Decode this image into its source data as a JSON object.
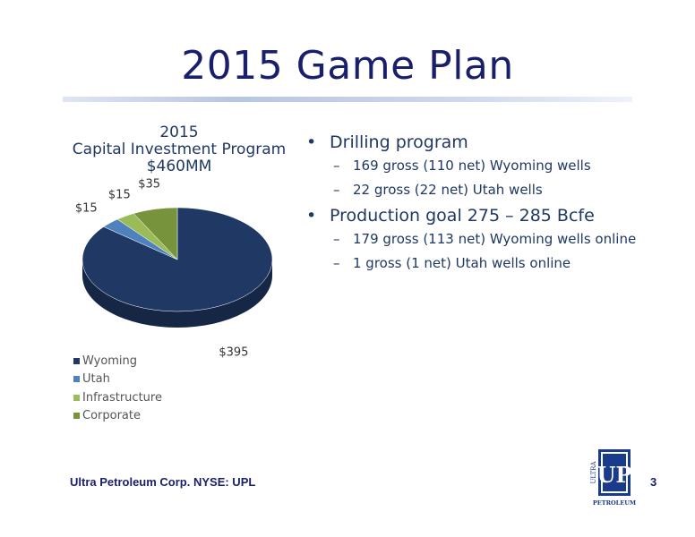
{
  "slide": {
    "title": "2015 Game Plan",
    "footer": "Ultra Petroleum Corp. NYSE: UPL",
    "page_number": "3"
  },
  "bullets": [
    {
      "label": "Drilling program",
      "subitems": [
        "169 gross (110 net) Wyoming wells",
        "22 gross (22 net) Utah wells"
      ]
    },
    {
      "label": "Production goal 275 – 285 Bcfe",
      "subitems": [
        "179 gross (113 net) Wyoming wells online",
        "1 gross (1 net) Utah wells online"
      ]
    }
  ],
  "logo": {
    "text_up": "UP",
    "text_ultra": "ULTRA",
    "text_petroleum": "PETROLEUM"
  },
  "chart_data": {
    "type": "pie",
    "title_line1": "2015",
    "title_line2": "Capital Investment Program",
    "title_line3": "$460MM",
    "categories": [
      "Wyoming",
      "Utah",
      "Infrastructure",
      "Corporate"
    ],
    "values": [
      395,
      15,
      15,
      35
    ],
    "data_labels": [
      "$395",
      "$15",
      "$15",
      "$35"
    ],
    "colors": [
      "#1f3864",
      "#4f81bd",
      "#9bbb59",
      "#77933c"
    ],
    "legend_position": "bottom-left",
    "three_d": true
  }
}
